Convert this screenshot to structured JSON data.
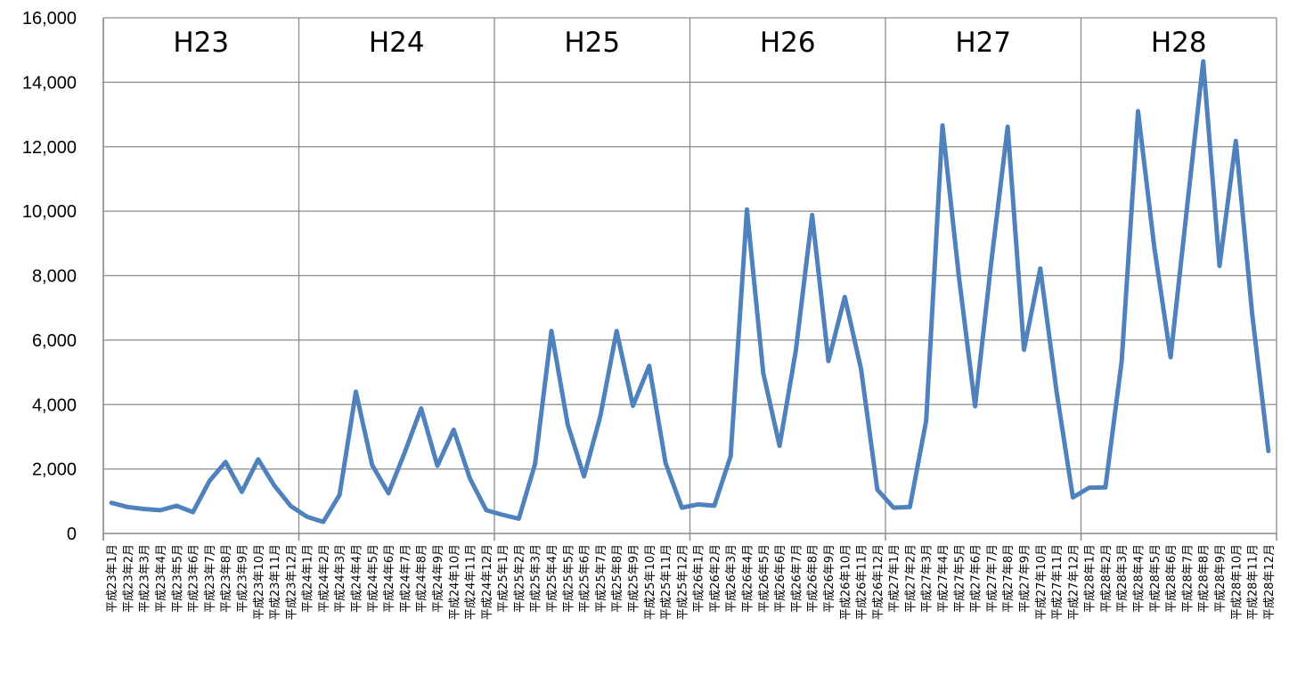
{
  "chart_data": {
    "type": "line",
    "title": "",
    "xlabel": "",
    "ylabel": "",
    "ylim": [
      0,
      16000
    ],
    "yticks": [
      "0",
      "2,000",
      "4,000",
      "6,000",
      "8,000",
      "10,000",
      "12,000",
      "14,000",
      "16,000"
    ],
    "grid": true,
    "legend": "none",
    "line_color": "#4F81BD",
    "year_labels": [
      "H23",
      "H24",
      "H25",
      "H26",
      "H27",
      "H28"
    ],
    "categories": [
      "平成23年1月",
      "平成23年2月",
      "平成23年3月",
      "平成23年4月",
      "平成23年5月",
      "平成23年6月",
      "平成23年7月",
      "平成23年8月",
      "平成23年9月",
      "平成23年10月",
      "平成23年11月",
      "平成23年12月",
      "平成24年1月",
      "平成24年2月",
      "平成24年3月",
      "平成24年4月",
      "平成24年5月",
      "平成24年6月",
      "平成24年7月",
      "平成24年8月",
      "平成24年9月",
      "平成24年10月",
      "平成24年11月",
      "平成24年12月",
      "平成25年1月",
      "平成25年2月",
      "平成25年3月",
      "平成25年4月",
      "平成25年5月",
      "平成25年6月",
      "平成25年7月",
      "平成25年8月",
      "平成25年9月",
      "平成25年10月",
      "平成25年11月",
      "平成25年12月",
      "平成26年1月",
      "平成26年2月",
      "平成26年3月",
      "平成26年4月",
      "平成26年5月",
      "平成26年6月",
      "平成26年7月",
      "平成26年8月",
      "平成26年9月",
      "平成26年10月",
      "平成26年11月",
      "平成26年12月",
      "平成27年1月",
      "平成27年2月",
      "平成27年3月",
      "平成27年4月",
      "平成27年5月",
      "平成27年6月",
      "平成27年7月",
      "平成27年8月",
      "平成27年9月",
      "平成27年10月",
      "平成27年11月",
      "平成27年12月",
      "平成28年1月",
      "平成28年2月",
      "平成28年3月",
      "平成28年4月",
      "平成28年5月",
      "平成28年6月",
      "平成28年7月",
      "平成28年8月",
      "平成28年9月",
      "平成28年10月",
      "平成28年11月",
      "平成28年12月"
    ],
    "values": [
      950,
      820,
      760,
      720,
      860,
      660,
      1620,
      2220,
      1290,
      2300,
      1480,
      850,
      520,
      360,
      1200,
      4400,
      2120,
      1250,
      2520,
      3880,
      2100,
      3220,
      1700,
      720,
      580,
      460,
      2160,
      6280,
      3380,
      1770,
      3640,
      6280,
      3960,
      5200,
      2190,
      800,
      900,
      860,
      2400,
      10050,
      4980,
      2720,
      5680,
      9880,
      5350,
      7340,
      5100,
      1360,
      800,
      820,
      3500,
      12660,
      8000,
      3950,
      8450,
      12620,
      5700,
      8220,
      4400,
      1120,
      1420,
      1430,
      5350,
      13100,
      8880,
      5470,
      10080,
      14650,
      8300,
      12180,
      6820,
      2560
    ]
  }
}
